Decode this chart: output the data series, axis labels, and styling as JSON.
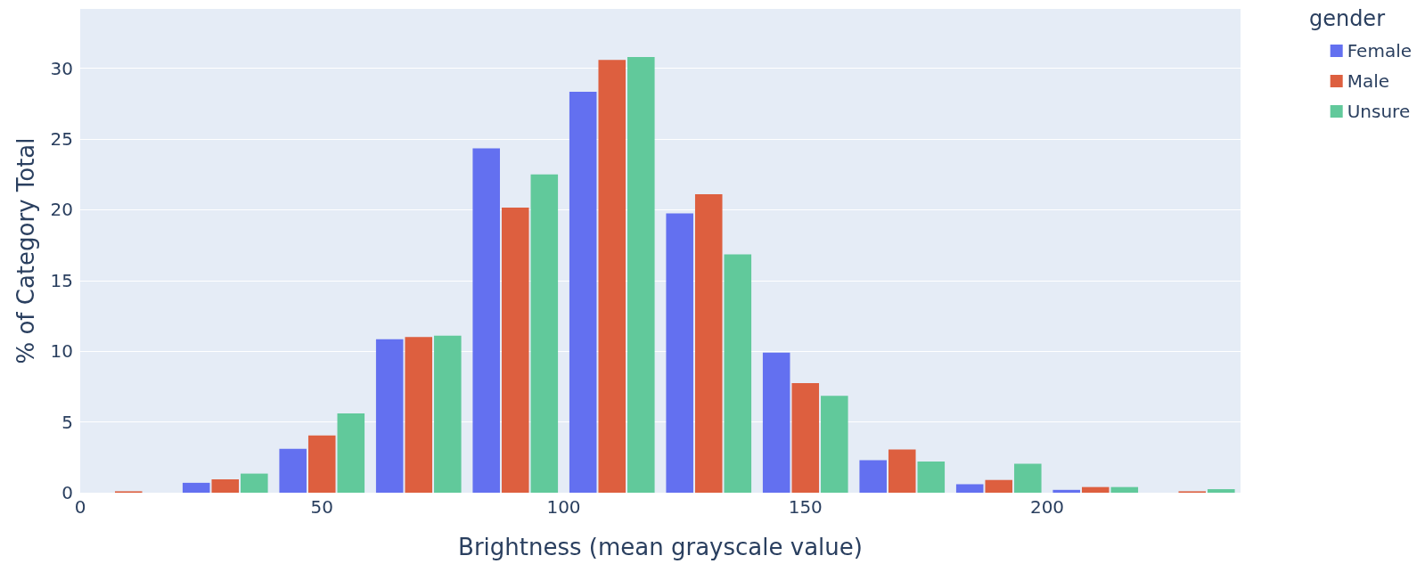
{
  "chart_data": {
    "type": "histogram",
    "xlabel": "Brightness (mean grayscale value)",
    "ylabel": "% of Category Total",
    "legend_title": "gender",
    "bins": [
      0,
      20,
      40,
      60,
      80,
      100,
      120,
      140,
      160,
      180,
      200,
      220,
      240
    ],
    "series": [
      {
        "name": "Female",
        "color": "#6370f0",
        "values": [
          0,
          0.7,
          3.1,
          10.85,
          24.35,
          28.35,
          19.75,
          9.9,
          2.3,
          0.6,
          0.2,
          0
        ]
      },
      {
        "name": "Male",
        "color": "#dd5f3f",
        "values": [
          0.1,
          0.95,
          4.05,
          11.0,
          20.15,
          30.6,
          21.1,
          7.75,
          3.05,
          0.9,
          0.4,
          0.1
        ]
      },
      {
        "name": "Unsure",
        "color": "#61c99b",
        "values": [
          0,
          1.35,
          5.6,
          11.1,
          22.5,
          30.8,
          16.85,
          6.85,
          2.2,
          2.05,
          0.4,
          0.25
        ]
      }
    ],
    "xlim": [
      0,
      240
    ],
    "xticks": [
      0,
      50,
      100,
      150,
      200
    ],
    "ylim": [
      0,
      34.2
    ],
    "yticks": [
      0,
      5,
      10,
      15,
      20,
      25,
      30
    ],
    "grid": "y",
    "legend": "top right"
  }
}
